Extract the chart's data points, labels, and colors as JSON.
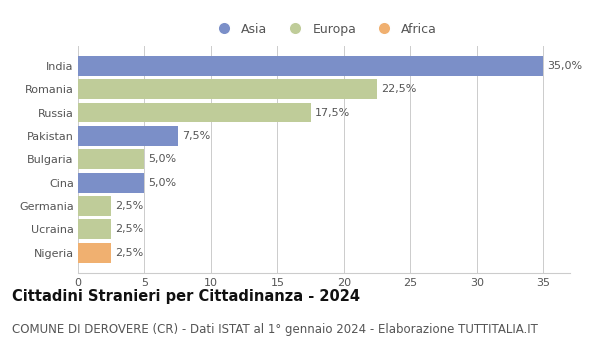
{
  "countries": [
    "India",
    "Romania",
    "Russia",
    "Pakistan",
    "Bulgaria",
    "Cina",
    "Germania",
    "Ucraina",
    "Nigeria"
  ],
  "values": [
    35.0,
    22.5,
    17.5,
    7.5,
    5.0,
    5.0,
    2.5,
    2.5,
    2.5
  ],
  "continents": [
    "Asia",
    "Europa",
    "Europa",
    "Asia",
    "Europa",
    "Asia",
    "Europa",
    "Europa",
    "Africa"
  ],
  "labels": [
    "35,0%",
    "22,5%",
    "17,5%",
    "7,5%",
    "5,0%",
    "5,0%",
    "2,5%",
    "2,5%",
    "2,5%"
  ],
  "colors": {
    "Asia": "#7b8fc8",
    "Europa": "#bfcc99",
    "Africa": "#f0b070"
  },
  "xlim": [
    0,
    37
  ],
  "xticks": [
    0,
    5,
    10,
    15,
    20,
    25,
    30,
    35
  ],
  "title": "Cittadini Stranieri per Cittadinanza - 2024",
  "subtitle": "COMUNE DI DEROVERE (CR) - Dati ISTAT al 1° gennaio 2024 - Elaborazione TUTTITALIA.IT",
  "title_fontsize": 10.5,
  "subtitle_fontsize": 8.5,
  "bar_height": 0.85,
  "background_color": "#ffffff",
  "grid_color": "#cccccc",
  "label_fontsize": 8,
  "tick_label_fontsize": 8,
  "axis_label_color": "#555555"
}
